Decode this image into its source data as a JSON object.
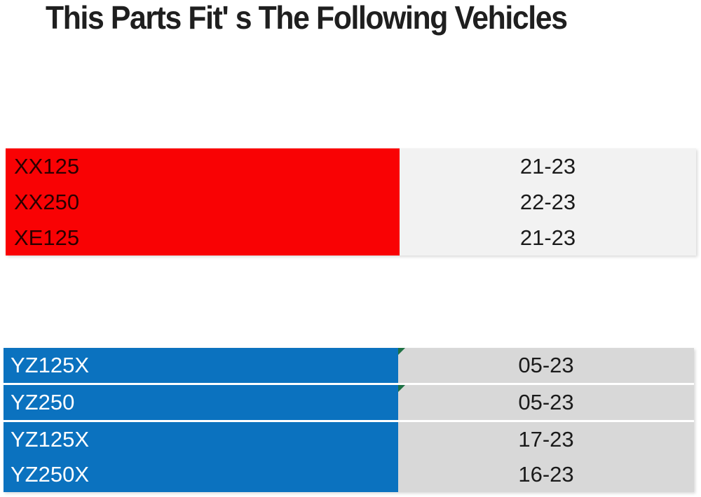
{
  "title": "This Parts Fit' s The Following Vehicles",
  "colors": {
    "red_fill": "#f90204",
    "red_table_years_fill": "#f2f2f2",
    "blue_fill": "#0b72bf",
    "blue_table_years_fill": "#d8d8d8",
    "green_flag": "#1e7145",
    "title_text": "#1f1f1f",
    "model_text_red_table": "#2b0000",
    "model_text_blue_table": "#ffffff",
    "years_text": "#1a1a1a"
  },
  "red_table": {
    "rows": [
      {
        "model": "XX125",
        "years": "21-23"
      },
      {
        "model": "XX250",
        "years": "22-23"
      },
      {
        "model": "XE125",
        "years": "21-23"
      }
    ]
  },
  "blue_table": {
    "rows": [
      {
        "model": "YZ125X",
        "years": "05-23"
      },
      {
        "model": "YZ250",
        "years": "05-23"
      },
      {
        "model": "YZ125X",
        "years": "17-23"
      },
      {
        "model": "YZ250X",
        "years": "16-23"
      }
    ]
  }
}
